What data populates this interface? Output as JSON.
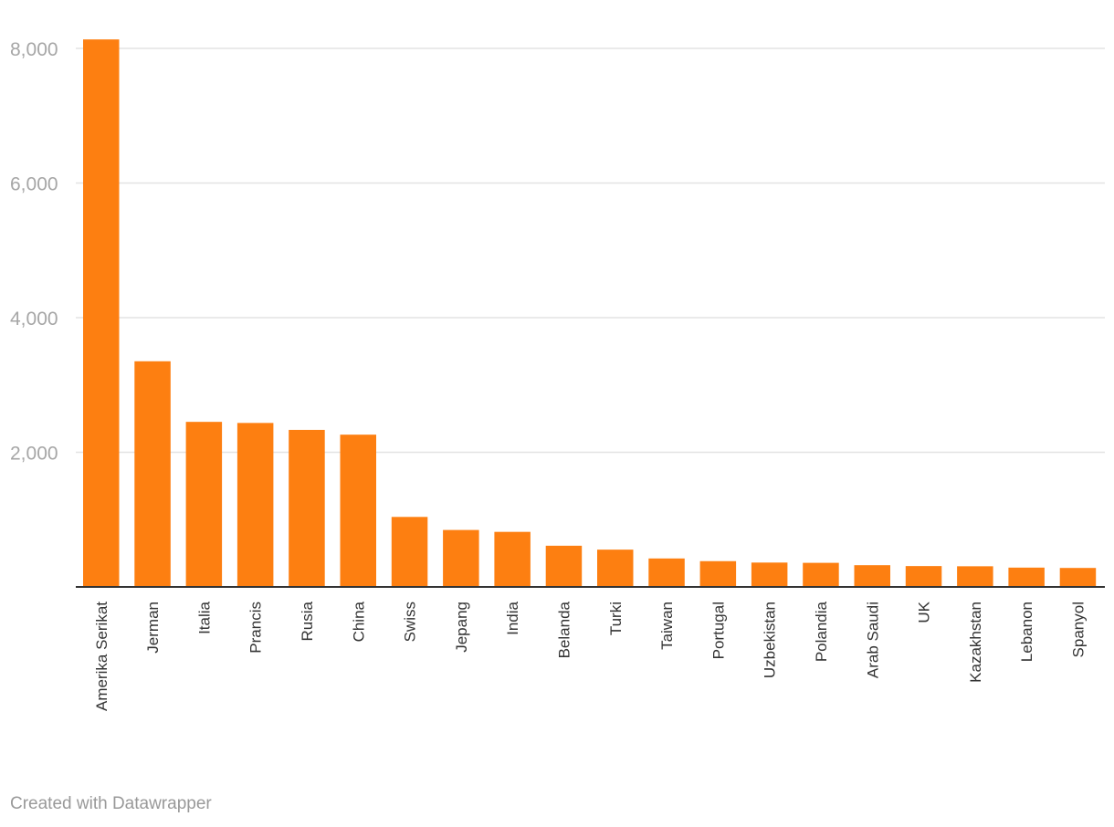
{
  "chart_data": {
    "type": "bar",
    "categories": [
      "Amerika Serikat",
      "Jerman",
      "Italia",
      "Prancis",
      "Rusia",
      "China",
      "Swiss",
      "Jepang",
      "India",
      "Belanda",
      "Turki",
      "Taiwan",
      "Portugal",
      "Uzbekistan",
      "Polandia",
      "Arab Saudi",
      "UK",
      "Kazakhstan",
      "Lebanon",
      "Spanyol"
    ],
    "values": [
      8133,
      3352,
      2452,
      2436,
      2333,
      2262,
      1040,
      846,
      818,
      612,
      554,
      423,
      383,
      362,
      358,
      323,
      310,
      307,
      287,
      282
    ],
    "yticks": [
      2000,
      4000,
      6000,
      8000
    ],
    "ytick_labels": [
      "2,000",
      "4,000",
      "6,000",
      "8,000"
    ],
    "ylim": [
      0,
      8000
    ],
    "bar_color": "#fd7f11",
    "grid": true
  },
  "footer": {
    "credit": "Created with Datawrapper"
  }
}
